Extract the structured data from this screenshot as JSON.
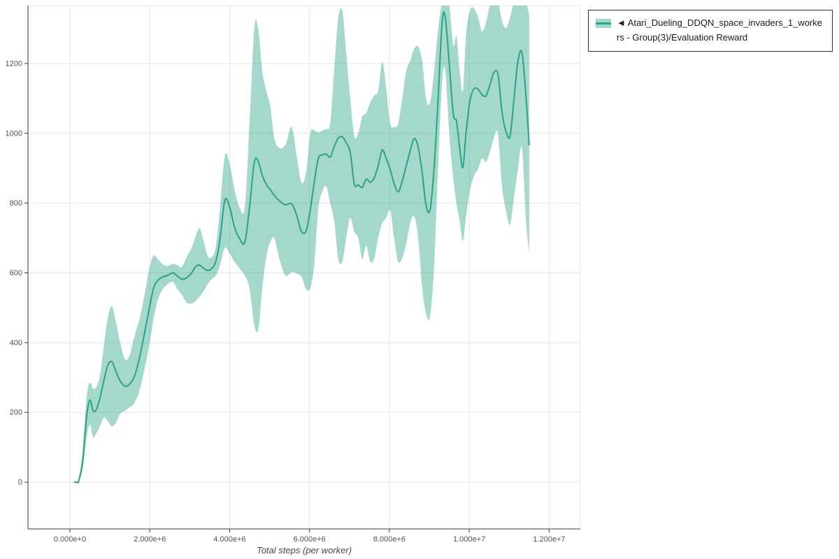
{
  "legend": {
    "collapse_icon": "◄",
    "label": "Atari_Dueling_DDQN_space_invaders_1_workers - Group(3)/Evaluation Reward"
  },
  "chart_data": {
    "type": "line",
    "title": "",
    "xlabel": "Total steps (per worker)",
    "ylabel": "",
    "grid": true,
    "legend_position": "top-right-outside",
    "grid_color": "#e4e4e4",
    "axis_color": "#333333",
    "tick_label_color": "#525252",
    "x_range": [
      -1050000,
      12780000
    ],
    "y_range": [
      -134,
      1366
    ],
    "x_ticks": [
      {
        "value": 0,
        "label": "0.000e+0"
      },
      {
        "value": 2000000,
        "label": "2.000e+6"
      },
      {
        "value": 4000000,
        "label": "4.000e+6"
      },
      {
        "value": 6000000,
        "label": "6.000e+6"
      },
      {
        "value": 8000000,
        "label": "8.000e+6"
      },
      {
        "value": 10000000,
        "label": "1.000e+7"
      },
      {
        "value": 12000000,
        "label": "1.200e+7"
      }
    ],
    "y_ticks": [
      {
        "value": 0,
        "label": "0"
      },
      {
        "value": 200,
        "label": "200"
      },
      {
        "value": 400,
        "label": "400"
      },
      {
        "value": 600,
        "label": "600"
      },
      {
        "value": 800,
        "label": "800"
      },
      {
        "value": 1000,
        "label": "1000"
      },
      {
        "value": 1200,
        "label": "1200"
      }
    ],
    "series": [
      {
        "name": "Atari_Dueling_DDQN_space_invaders_1_workers - Group(3)/Evaluation Reward",
        "color": "#28a385",
        "band_fill": "#a4d7c9",
        "band_opacity": 0.42,
        "x": [
          100000,
          180000,
          220000,
          320000,
          420000,
          500000,
          580000,
          660000,
          750000,
          850000,
          950000,
          1050000,
          1150000,
          1250000,
          1380000,
          1500000,
          1620000,
          1750000,
          1880000,
          2000000,
          2100000,
          2200000,
          2320000,
          2450000,
          2580000,
          2700000,
          2800000,
          2920000,
          3050000,
          3150000,
          3250000,
          3350000,
          3450000,
          3550000,
          3650000,
          3750000,
          3880000,
          4000000,
          4120000,
          4250000,
          4380000,
          4500000,
          4620000,
          4720000,
          4820000,
          4920000,
          5020000,
          5120000,
          5250000,
          5400000,
          5550000,
          5680000,
          5800000,
          5920000,
          6020000,
          6120000,
          6220000,
          6320000,
          6420000,
          6520000,
          6620000,
          6720000,
          6820000,
          6920000,
          7020000,
          7120000,
          7220000,
          7320000,
          7420000,
          7520000,
          7620000,
          7720000,
          7820000,
          7920000,
          8020000,
          8120000,
          8220000,
          8320000,
          8420000,
          8520000,
          8620000,
          8720000,
          8820000,
          8920000,
          9020000,
          9120000,
          9220000,
          9320000,
          9400000,
          9500000,
          9600000,
          9680000,
          9760000,
          9840000,
          9920000,
          10020000,
          10120000,
          10220000,
          10320000,
          10420000,
          10520000,
          10620000,
          10720000,
          10820000,
          10920000,
          11020000,
          11120000,
          11220000,
          11320000,
          11420000,
          11500000
        ],
        "mean": [
          0,
          0,
          3,
          60,
          190,
          235,
          205,
          208,
          240,
          290,
          335,
          345,
          318,
          292,
          275,
          282,
          305,
          360,
          435,
          505,
          558,
          578,
          588,
          593,
          600,
          590,
          582,
          586,
          600,
          618,
          622,
          613,
          607,
          612,
          632,
          690,
          808,
          788,
          732,
          698,
          688,
          790,
          918,
          918,
          878,
          853,
          838,
          822,
          806,
          795,
          798,
          765,
          718,
          722,
          782,
          862,
          928,
          938,
          940,
          932,
          962,
          986,
          990,
          972,
          945,
          855,
          852,
          845,
          868,
          860,
          872,
          908,
          952,
          928,
          896,
          855,
          832,
          862,
          906,
          950,
          985,
          960,
          888,
          792,
          782,
          902,
          1098,
          1318,
          1332,
          1198,
          1055,
          1035,
          958,
          902,
          1002,
          1095,
          1128,
          1126,
          1110,
          1108,
          1140,
          1175,
          1168,
          1062,
          1005,
          992,
          1100,
          1208,
          1230,
          1105,
          965
        ],
        "lower": [
          0,
          0,
          0,
          40,
          130,
          165,
          130,
          140,
          160,
          185,
          175,
          160,
          170,
          195,
          205,
          215,
          228,
          265,
          330,
          400,
          470,
          522,
          552,
          568,
          574,
          552,
          538,
          515,
          512,
          520,
          532,
          548,
          568,
          582,
          592,
          618,
          672,
          655,
          632,
          612,
          592,
          555,
          448,
          440,
          560,
          648,
          688,
          700,
          638,
          592,
          602,
          598,
          588,
          552,
          558,
          625,
          785,
          832,
          848,
          798,
          748,
          640,
          632,
          702,
          758,
          718,
          700,
          640,
          678,
          632,
          642,
          702,
          742,
          758,
          778,
          698,
          632,
          642,
          682,
          742,
          762,
          700,
          558,
          482,
          476,
          622,
          898,
          1148,
          1178,
          998,
          868,
          798,
          748,
          692,
          762,
          838,
          878,
          898,
          928,
          918,
          948,
          988,
          998,
          848,
          778,
          738,
          818,
          898,
          958,
          748,
          658
        ],
        "upper": [
          0,
          0,
          8,
          95,
          245,
          285,
          268,
          272,
          305,
          390,
          470,
          505,
          460,
          405,
          352,
          365,
          420,
          470,
          545,
          618,
          650,
          640,
          625,
          620,
          626,
          622,
          616,
          645,
          672,
          705,
          728,
          690,
          648,
          645,
          672,
          775,
          935,
          912,
          840,
          788,
          790,
          1035,
          1305,
          1295,
          1175,
          1120,
          1075,
          985,
          958,
          968,
          1018,
          935,
          858,
          892,
          1002,
          1008,
          1002,
          1008,
          1012,
          1030,
          1185,
          1332,
          1350,
          1228,
          1098,
          992,
          1000,
          1048,
          1058,
          1088,
          1108,
          1122,
          1205,
          1128,
          1028,
          1018,
          1028,
          1098,
          1178,
          1208,
          1242,
          1248,
          1208,
          1098,
          1088,
          1178,
          1298,
          1375,
          1378,
          1368,
          1252,
          1278,
          1178,
          1122,
          1282,
          1352,
          1358,
          1332,
          1292,
          1318,
          1368,
          1378,
          1378,
          1322,
          1302,
          1332,
          1378,
          1378,
          1378,
          1378,
          1338
        ]
      }
    ]
  }
}
